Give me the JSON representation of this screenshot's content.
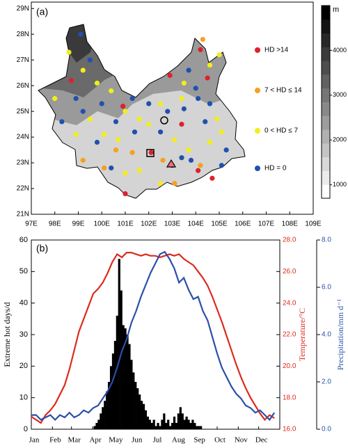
{
  "map": {
    "panel_label": "(a)",
    "lonlim": [
      97,
      109
    ],
    "latlim": [
      21,
      29.25
    ],
    "lonticks": [
      {
        "value": 97,
        "label": "97E"
      },
      {
        "value": 98,
        "label": "98E"
      },
      {
        "value": 99,
        "label": "99E"
      },
      {
        "value": 100,
        "label": "100E"
      },
      {
        "value": 101,
        "label": "101E"
      },
      {
        "value": 102,
        "label": "102E"
      },
      {
        "value": 103,
        "label": "103E"
      },
      {
        "value": 104,
        "label": "104E"
      },
      {
        "value": 105,
        "label": "105E"
      },
      {
        "value": 106,
        "label": "106E"
      },
      {
        "value": 107,
        "label": "107E"
      },
      {
        "value": 108,
        "label": "108E"
      },
      {
        "value": 109,
        "label": "109E"
      }
    ],
    "latticks": [
      {
        "value": 21,
        "label": "21N"
      },
      {
        "value": 22,
        "label": "22N"
      },
      {
        "value": 23,
        "label": "23N"
      },
      {
        "value": 24,
        "label": "24N"
      },
      {
        "value": 25,
        "label": "25N"
      },
      {
        "value": 26,
        "label": "26N"
      },
      {
        "value": 27,
        "label": "27N"
      },
      {
        "value": 28,
        "label": "28N"
      },
      {
        "value": 29,
        "label": "29N"
      }
    ],
    "colorbar": {
      "unit": "m",
      "lim": [
        700,
        5000
      ],
      "ticks": [
        1000,
        2000,
        3000,
        4000
      ]
    },
    "classes": [
      {
        "name": "HD >14",
        "color": "#e0202a",
        "stations": [
          [
            104.2,
            27.4
          ],
          [
            102.9,
            26.4
          ],
          [
            104.5,
            26.3
          ],
          [
            103.4,
            24.5
          ],
          [
            102.1,
            23.4
          ],
          [
            104.7,
            22.4
          ],
          [
            101.0,
            21.8
          ],
          [
            98.7,
            26.2
          ],
          [
            100.9,
            25.2
          ],
          [
            104.1,
            22.7
          ]
        ]
      },
      {
        "name": "7 < HD ≤ 14",
        "color": "#f5a020",
        "stations": [
          [
            104.3,
            27.8
          ],
          [
            99.2,
            23.1
          ],
          [
            100.1,
            22.8
          ],
          [
            101.3,
            23.4
          ],
          [
            103.1,
            22.2
          ],
          [
            104.2,
            22.9
          ],
          [
            100.6,
            23.5
          ],
          [
            102.6,
            23.1
          ]
        ]
      },
      {
        "name": "0 < HD ≤ 7",
        "color": "#f2ee1c",
        "stations": [
          [
            98.6,
            27.3
          ],
          [
            99.2,
            26.6
          ],
          [
            99.8,
            26.1
          ],
          [
            100.4,
            25.8
          ],
          [
            101.0,
            25.0
          ],
          [
            101.6,
            24.7
          ],
          [
            99.5,
            24.7
          ],
          [
            98.9,
            24.1
          ],
          [
            100.1,
            24.1
          ],
          [
            100.7,
            23.9
          ],
          [
            102.5,
            25.3
          ],
          [
            103.4,
            25.5
          ],
          [
            103.1,
            23.9
          ],
          [
            103.7,
            23.5
          ],
          [
            104.6,
            23.8
          ],
          [
            105.1,
            24.2
          ],
          [
            104.9,
            24.7
          ],
          [
            101.6,
            22.7
          ],
          [
            102.5,
            22.2
          ],
          [
            101.0,
            22.6
          ],
          [
            98.0,
            25.5
          ],
          [
            104.6,
            26.8
          ],
          [
            105.0,
            27.2
          ],
          [
            103.5,
            26.1
          ],
          [
            102.0,
            24.5
          ]
        ]
      },
      {
        "name": "HD = 0",
        "color": "#2050b0",
        "stations": [
          [
            99.1,
            28.0
          ],
          [
            99.5,
            27.0
          ],
          [
            98.9,
            25.5
          ],
          [
            100.0,
            25.3
          ],
          [
            100.6,
            24.6
          ],
          [
            101.3,
            25.5
          ],
          [
            102.0,
            25.3
          ],
          [
            102.8,
            25.0
          ],
          [
            103.5,
            25.1
          ],
          [
            104.1,
            25.5
          ],
          [
            104.6,
            25.3
          ],
          [
            103.7,
            26.6
          ],
          [
            104.0,
            25.9
          ],
          [
            104.4,
            24.6
          ],
          [
            105.3,
            23.5
          ],
          [
            102.5,
            24.2
          ],
          [
            101.4,
            24.2
          ],
          [
            99.8,
            23.8
          ],
          [
            99.2,
            25.0
          ],
          [
            103.0,
            22.9
          ],
          [
            103.8,
            23.1
          ],
          [
            100.4,
            22.8
          ],
          [
            103.4,
            23.2
          ],
          [
            98.3,
            24.6
          ],
          [
            105.1,
            22.9
          ]
        ]
      }
    ]
  },
  "chart_data": {
    "type": "bar",
    "panel_label": "(b)",
    "ylabel": "Extreme hot days/d",
    "y2label": "Temperature/°C",
    "y3label": "Precipitation/mm d⁻¹",
    "xlim": [
      1,
      366
    ],
    "xticks": [
      {
        "value": 1,
        "label": "Jan"
      },
      {
        "value": 32,
        "label": "Feb"
      },
      {
        "value": 60,
        "label": "Mar"
      },
      {
        "value": 91,
        "label": "Apr"
      },
      {
        "value": 121,
        "label": "May"
      },
      {
        "value": 152,
        "label": "Jun"
      },
      {
        "value": 182,
        "label": "Jul"
      },
      {
        "value": 213,
        "label": "Aug"
      },
      {
        "value": 244,
        "label": "Sep"
      },
      {
        "value": 274,
        "label": "Oct"
      },
      {
        "value": 305,
        "label": "Nov"
      },
      {
        "value": 335,
        "label": "Dec"
      }
    ],
    "ylim": [
      0,
      60
    ],
    "yticks": [
      0,
      10,
      20,
      30,
      40,
      50,
      60
    ],
    "y2lim": [
      16,
      28
    ],
    "y2ticks": [
      {
        "value": 16,
        "label": "16.0"
      },
      {
        "value": 18,
        "label": "18.0"
      },
      {
        "value": 20,
        "label": "20.0"
      },
      {
        "value": 22,
        "label": "22.0"
      },
      {
        "value": 24,
        "label": "24.0"
      },
      {
        "value": 26,
        "label": "26.0"
      },
      {
        "value": 28,
        "label": "28.0"
      }
    ],
    "y3lim": [
      0,
      8
    ],
    "y3ticks": [
      {
        "value": 0,
        "label": "0.0"
      },
      {
        "value": 2,
        "label": "2.0"
      },
      {
        "value": 4,
        "label": "4.0"
      },
      {
        "value": 6,
        "label": "6.0"
      },
      {
        "value": 8,
        "label": "8.0"
      }
    ],
    "series": [
      {
        "type": "bar",
        "color": "#000000",
        "x": [
          94,
          97,
          100,
          103,
          106,
          109,
          112,
          115,
          118,
          121,
          124,
          127,
          130,
          133,
          136,
          139,
          142,
          145,
          148,
          151,
          154,
          157,
          160,
          163,
          166,
          169,
          172,
          175,
          178,
          181,
          184,
          187,
          190,
          193,
          196,
          199,
          202,
          205,
          208,
          211,
          214,
          217,
          220,
          223,
          226,
          229,
          232,
          235,
          238,
          241,
          244,
          247,
          250
        ],
        "values": [
          1,
          2,
          3,
          5,
          7,
          9,
          12,
          15,
          20,
          24,
          28,
          36,
          54,
          44,
          33,
          32,
          30,
          27,
          22,
          18,
          15,
          13,
          11,
          9,
          8,
          6,
          4,
          3,
          2,
          3,
          1,
          2,
          1,
          3,
          5,
          2,
          3,
          1,
          2,
          4,
          2,
          5,
          7,
          5,
          3,
          4,
          3,
          2,
          3,
          2,
          1,
          1,
          1
        ]
      },
      {
        "type": "line",
        "axis": "y2",
        "color": "#dd2a1e",
        "x": [
          1,
          8,
          15,
          22,
          29,
          36,
          43,
          50,
          57,
          64,
          71,
          78,
          85,
          92,
          99,
          106,
          113,
          120,
          127,
          134,
          141,
          148,
          155,
          162,
          169,
          176,
          183,
          190,
          197,
          204,
          211,
          218,
          225,
          232,
          239,
          246,
          253,
          260,
          267,
          274,
          281,
          288,
          295,
          302,
          309,
          316,
          323,
          330,
          337,
          344,
          351,
          358
        ],
        "values": [
          16.8,
          16.6,
          16.4,
          16.9,
          17.2,
          17.6,
          18.2,
          18.8,
          19.8,
          21.0,
          22.2,
          23.0,
          23.8,
          24.6,
          24.9,
          25.3,
          25.9,
          26.6,
          27.1,
          26.9,
          27.2,
          27.2,
          27.1,
          27.0,
          27.1,
          27.0,
          27.0,
          26.9,
          27.0,
          27.1,
          27.0,
          27.1,
          26.8,
          26.6,
          26.4,
          26.0,
          25.6,
          25.1,
          24.4,
          23.6,
          22.8,
          21.9,
          21.0,
          20.1,
          19.3,
          18.6,
          18.0,
          17.5,
          17.0,
          16.6,
          16.9,
          16.7
        ]
      },
      {
        "type": "line",
        "axis": "y3",
        "color": "#2b4fa8",
        "x": [
          1,
          8,
          15,
          22,
          29,
          36,
          43,
          50,
          57,
          64,
          71,
          78,
          85,
          92,
          99,
          106,
          113,
          120,
          127,
          134,
          141,
          148,
          155,
          162,
          169,
          176,
          183,
          190,
          197,
          204,
          211,
          218,
          225,
          232,
          239,
          246,
          253,
          260,
          267,
          274,
          281,
          288,
          295,
          302,
          309,
          316,
          323,
          330,
          337,
          344,
          351,
          358
        ],
        "values": [
          0.6,
          0.6,
          0.4,
          0.5,
          0.6,
          0.4,
          0.6,
          0.5,
          0.7,
          0.5,
          0.6,
          0.8,
          0.7,
          0.9,
          1.0,
          1.3,
          1.6,
          2.0,
          2.6,
          3.3,
          3.8,
          4.5,
          5.0,
          5.6,
          6.1,
          6.6,
          7.0,
          7.4,
          7.5,
          7.2,
          6.8,
          6.2,
          6.4,
          5.9,
          5.5,
          5.6,
          5.0,
          4.6,
          3.9,
          3.2,
          2.6,
          2.2,
          1.8,
          1.5,
          1.3,
          1.0,
          0.9,
          0.7,
          0.8,
          0.6,
          0.4,
          0.7
        ]
      }
    ]
  }
}
